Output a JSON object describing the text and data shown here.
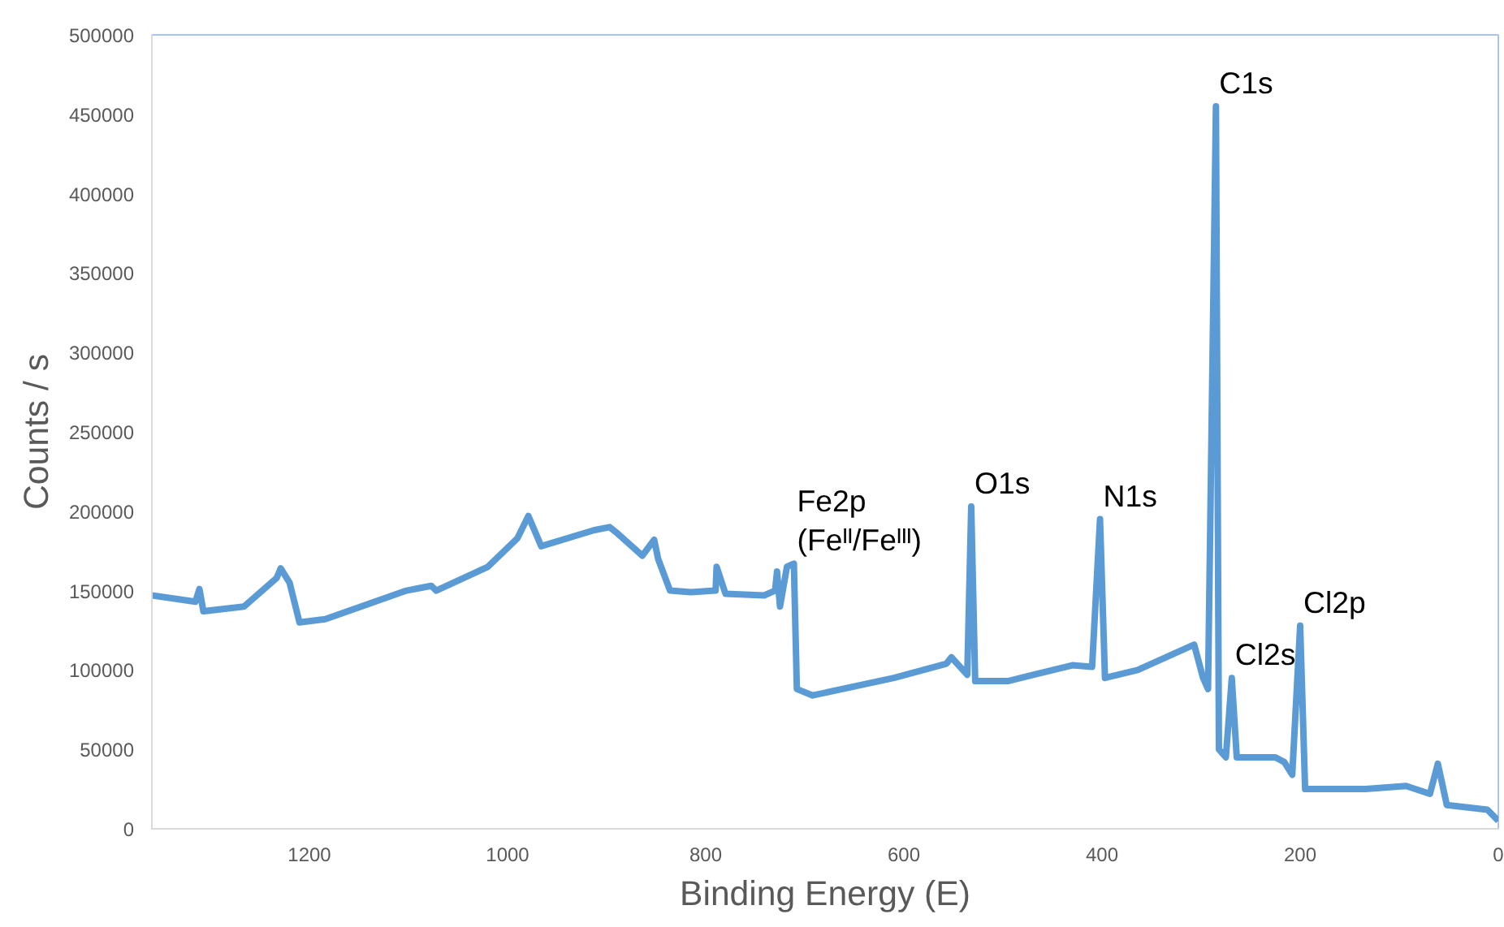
{
  "chart_data": {
    "type": "line",
    "xlabel": "Binding Energy (E)",
    "ylabel": "Counts / s",
    "x": [
      1359,
      1315,
      1311,
      1307,
      1266,
      1233,
      1229,
      1220,
      1210,
      1184,
      1102,
      1077,
      1072,
      1020,
      990,
      979,
      966,
      913,
      897,
      889,
      864,
      852,
      848,
      836,
      815,
      790,
      789,
      780,
      741,
      730,
      728,
      725,
      718,
      711,
      708,
      692,
      610,
      557,
      552,
      536,
      532,
      528,
      495,
      430,
      410,
      402,
      397,
      364,
      307,
      298,
      293,
      285,
      282,
      275,
      269,
      264,
      225,
      216,
      208,
      200,
      195,
      134,
      93,
      69,
      61,
      52,
      11,
      0
    ],
    "series": [
      {
        "color": "#5b9bd5",
        "values": [
          147000,
          143000,
          151000,
          137000,
          140000,
          158000,
          164000,
          155000,
          130000,
          132000,
          150000,
          153000,
          150000,
          165000,
          183000,
          197000,
          178000,
          188000,
          190000,
          186000,
          172000,
          182000,
          170000,
          150000,
          149000,
          150000,
          165000,
          148000,
          147000,
          150000,
          162000,
          140000,
          165000,
          167000,
          88000,
          84000,
          95000,
          104000,
          108000,
          97000,
          203000,
          93000,
          93000,
          103000,
          102000,
          195000,
          95000,
          100000,
          116000,
          95000,
          88000,
          455000,
          50000,
          45000,
          95000,
          45000,
          45000,
          42000,
          34000,
          128000,
          25000,
          25000,
          27000,
          22000,
          41000,
          15000,
          12000,
          5000
        ]
      }
    ],
    "xlim": [
      1359,
      0
    ],
    "xticks": [
      1200,
      1000,
      800,
      600,
      400,
      200,
      0
    ],
    "ylim": [
      0,
      500000
    ],
    "yticks": [
      0,
      50000,
      100000,
      150000,
      200000,
      250000,
      300000,
      350000,
      400000,
      450000,
      500000
    ],
    "grid": false,
    "marker": "none",
    "line_style": "solid",
    "annotations": [
      {
        "text": "C1s",
        "x": 285,
        "y": 455000
      },
      {
        "text": "Fe2p\n(Feᴵᴵ/Feᴵᴵᴵ)",
        "x": 711,
        "y": 167000
      },
      {
        "text": "O1s",
        "x": 532,
        "y": 203000
      },
      {
        "text": "N1s",
        "x": 402,
        "y": 195000
      },
      {
        "text": "Cl2s",
        "x": 269,
        "y": 95000
      },
      {
        "text": "Cl2p",
        "x": 200,
        "y": 128000
      }
    ]
  }
}
